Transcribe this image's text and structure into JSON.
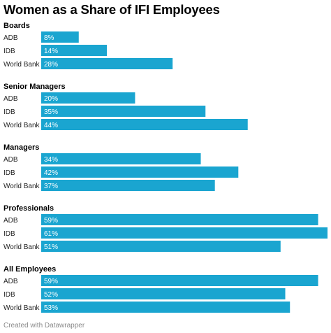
{
  "title": "Women as a Share of IFI Employees",
  "footer": "Created with Datawrapper",
  "colors": {
    "bar": "#1aa5d0",
    "bar_text": "#ffffff"
  },
  "chart_data": {
    "type": "bar",
    "orientation": "horizontal",
    "title": "Women as a Share of IFI Employees",
    "value_suffix": "%",
    "xlim": [
      0,
      61
    ],
    "groups": [
      {
        "name": "Boards",
        "categories": [
          "ADB",
          "IDB",
          "World Bank"
        ],
        "values": [
          8,
          14,
          28
        ]
      },
      {
        "name": "Senior Managers",
        "categories": [
          "ADB",
          "IDB",
          "World Bank"
        ],
        "values": [
          20,
          35,
          44
        ]
      },
      {
        "name": "Managers",
        "categories": [
          "ADB",
          "IDB",
          "World Bank"
        ],
        "values": [
          34,
          42,
          37
        ]
      },
      {
        "name": "Professionals",
        "categories": [
          "ADB",
          "IDB",
          "World Bank"
        ],
        "values": [
          59,
          61,
          51
        ]
      },
      {
        "name": "All Employees",
        "categories": [
          "ADB",
          "IDB",
          "World Bank"
        ],
        "values": [
          59,
          52,
          53
        ]
      }
    ]
  }
}
